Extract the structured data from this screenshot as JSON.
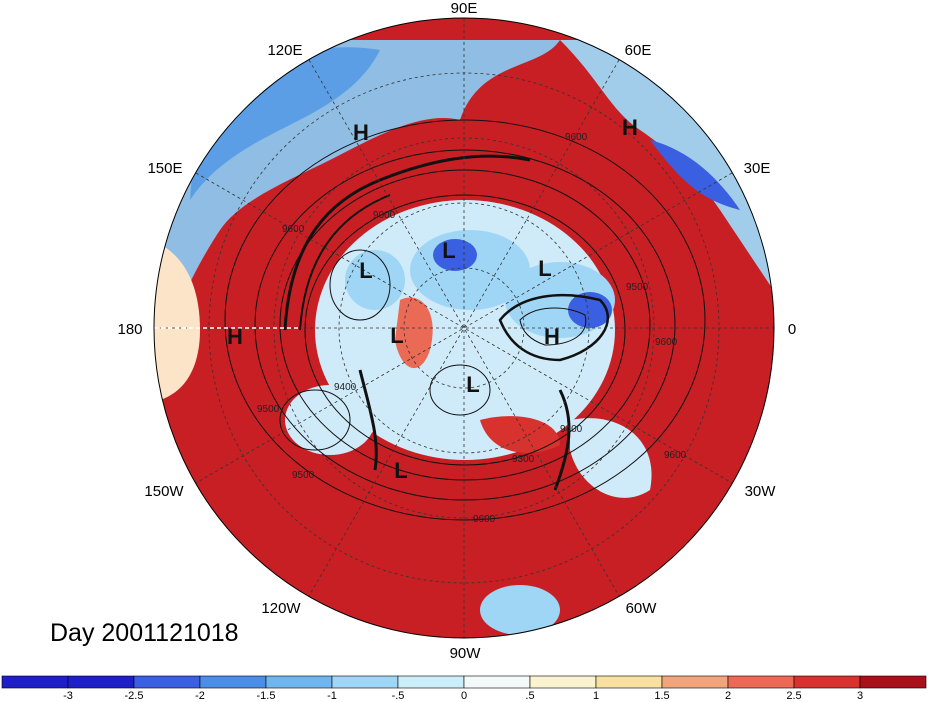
{
  "title": "Day 2001121018",
  "longitude_labels": [
    "90E",
    "60E",
    "30E",
    "0",
    "30W",
    "60W",
    "90W",
    "120W",
    "150W",
    "180",
    "150E",
    "120E"
  ],
  "pressure_centers": [
    "H",
    "H",
    "H",
    "H",
    "L",
    "L",
    "L",
    "L",
    "L",
    "L"
  ],
  "contour_labels": [
    "9600",
    "9000",
    "9600",
    "9400",
    "9500",
    "9400",
    "9500",
    "9300",
    "9600",
    "9600",
    "9600",
    "9500"
  ],
  "colorbar": {
    "ticks": [
      "-3",
      "-2.5",
      "-2",
      "-1.5",
      "-1",
      "-.5",
      "0",
      ".5",
      "1",
      "1.5",
      "2",
      "2.5",
      "3"
    ],
    "colors": [
      "#1f1fc8",
      "#3a5fe0",
      "#4a8ee8",
      "#6fb6f0",
      "#9fd6f5",
      "#cceefa",
      "#f3f8f8",
      "#fbf3cf",
      "#f8e0a0",
      "#f2a57a",
      "#eb6a55",
      "#d8322e",
      "#a8101a"
    ]
  }
}
